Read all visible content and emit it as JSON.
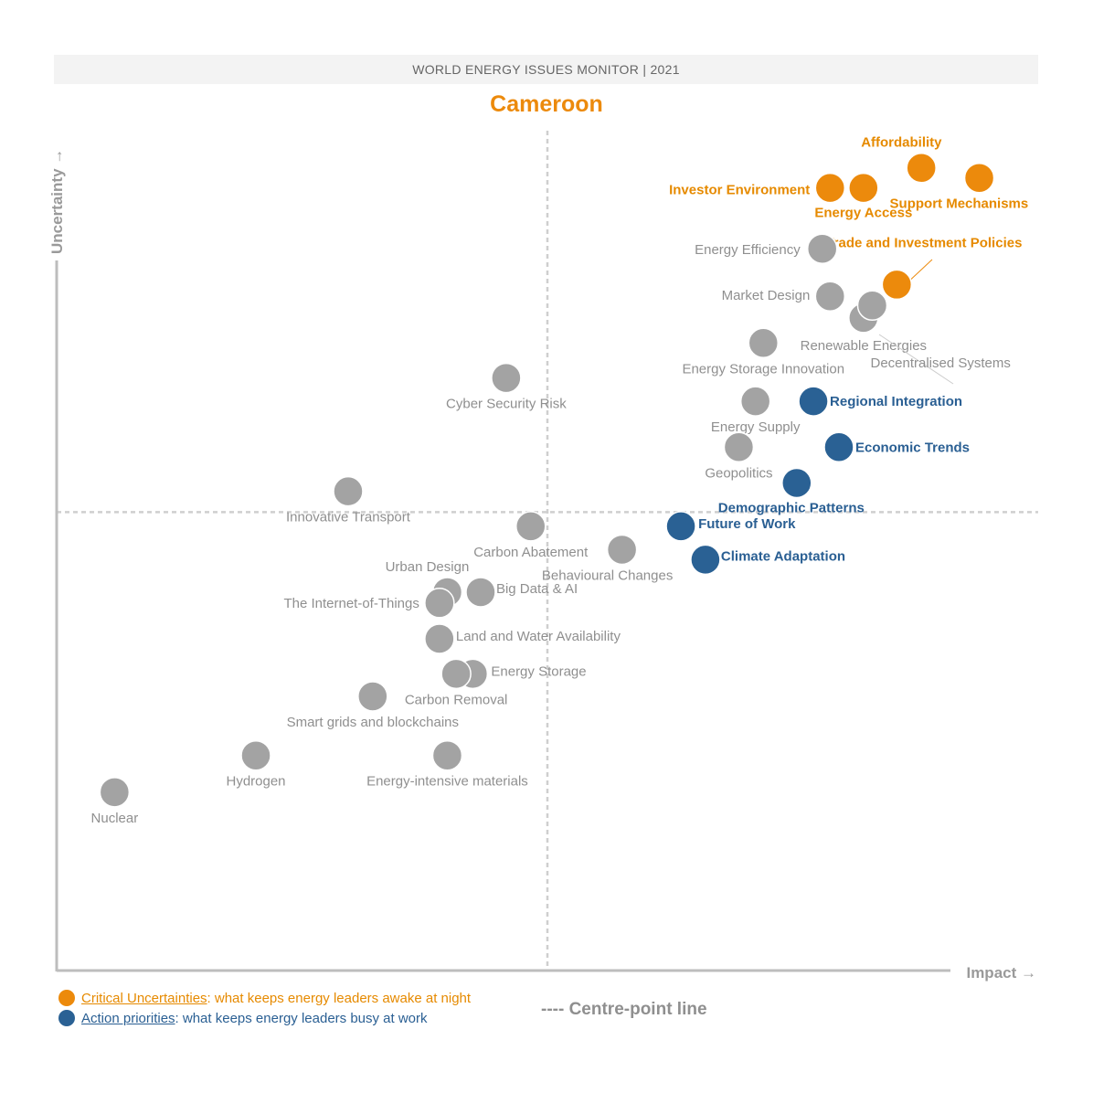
{
  "header": {
    "banner": "WORLD ENERGY ISSUES MONITOR | 2021",
    "country": "Cameroon"
  },
  "colors": {
    "critical": "#ec8a0c",
    "action": "#2a6194",
    "other": "#a3a3a3",
    "other_label": "#8f8f8f",
    "grid": "#cfcfcf",
    "axis": "#bdbdbd"
  },
  "legend": {
    "critical_key": "Critical Uncertainties",
    "critical_text": ": what keeps energy leaders awake at night",
    "action_key": "Action priorities",
    "action_text": ": what keeps energy leaders busy at work",
    "centre_line": "---- Centre-point line"
  },
  "chart_data": {
    "type": "scatter",
    "title": "Cameroon",
    "xlabel": "Impact →",
    "ylabel": "Uncertainty →",
    "xlim": [
      0,
      100
    ],
    "ylim": [
      0,
      100
    ],
    "centre": {
      "x": 50,
      "y": 55
    },
    "grid": false,
    "points": [
      {
        "name": "Affordability",
        "x": 88.1,
        "y": 96.3,
        "group": "critical"
      },
      {
        "name": "Support Mechanisms",
        "x": 94.0,
        "y": 95.1,
        "group": "critical"
      },
      {
        "name": "Investor Environment",
        "x": 78.8,
        "y": 93.9,
        "group": "critical"
      },
      {
        "name": "Energy Access",
        "x": 82.2,
        "y": 93.9,
        "group": "critical"
      },
      {
        "name": "Trade and Investment Policies",
        "x": 85.6,
        "y": 82.3,
        "group": "critical"
      },
      {
        "name": "Energy Efficiency",
        "x": 78.0,
        "y": 86.6,
        "group": "other"
      },
      {
        "name": "Market Design",
        "x": 78.8,
        "y": 80.9,
        "group": "other"
      },
      {
        "name": "Renewable Energies",
        "x": 82.2,
        "y": 78.3,
        "group": "other"
      },
      {
        "name": "Decentralised Systems",
        "x": 83.1,
        "y": 79.8,
        "group": "other"
      },
      {
        "name": "Energy Storage Innovation",
        "x": 72.0,
        "y": 75.3,
        "group": "other"
      },
      {
        "name": "Cyber Security Risk",
        "x": 45.8,
        "y": 71.1,
        "group": "other"
      },
      {
        "name": "Energy Supply",
        "x": 71.2,
        "y": 68.3,
        "group": "other"
      },
      {
        "name": "Regional Integration",
        "x": 77.1,
        "y": 68.3,
        "group": "action"
      },
      {
        "name": "Geopolitics",
        "x": 69.5,
        "y": 62.8,
        "group": "other"
      },
      {
        "name": "Economic Trends",
        "x": 79.7,
        "y": 62.8,
        "group": "action"
      },
      {
        "name": "Demographic Patterns",
        "x": 75.4,
        "y": 58.5,
        "group": "action"
      },
      {
        "name": "Innovative Transport",
        "x": 29.7,
        "y": 57.5,
        "group": "other"
      },
      {
        "name": "Carbon Abatement",
        "x": 48.3,
        "y": 53.3,
        "group": "other"
      },
      {
        "name": "Future of Work",
        "x": 63.6,
        "y": 53.3,
        "group": "action"
      },
      {
        "name": "Behavioural Changes",
        "x": 57.6,
        "y": 50.5,
        "group": "other"
      },
      {
        "name": "Climate Adaptation",
        "x": 66.1,
        "y": 49.3,
        "group": "action"
      },
      {
        "name": "Urban Design",
        "x": 39.8,
        "y": 45.4,
        "group": "other"
      },
      {
        "name": "Big Data & AI",
        "x": 43.2,
        "y": 45.4,
        "group": "other"
      },
      {
        "name": "The Internet-of-Things",
        "x": 39.0,
        "y": 44.1,
        "group": "other"
      },
      {
        "name": "Land and Water Availability",
        "x": 39.0,
        "y": 39.8,
        "group": "other"
      },
      {
        "name": "Energy Storage",
        "x": 42.4,
        "y": 35.6,
        "group": "other"
      },
      {
        "name": "Carbon Removal",
        "x": 40.7,
        "y": 35.6,
        "group": "other"
      },
      {
        "name": "Smart grids and blockchains",
        "x": 32.2,
        "y": 32.9,
        "group": "other"
      },
      {
        "name": "Hydrogen",
        "x": 20.3,
        "y": 25.8,
        "group": "other"
      },
      {
        "name": "Energy-intensive materials",
        "x": 39.8,
        "y": 25.8,
        "group": "other"
      },
      {
        "name": "Nuclear",
        "x": 5.9,
        "y": 21.4,
        "group": "other"
      }
    ]
  }
}
